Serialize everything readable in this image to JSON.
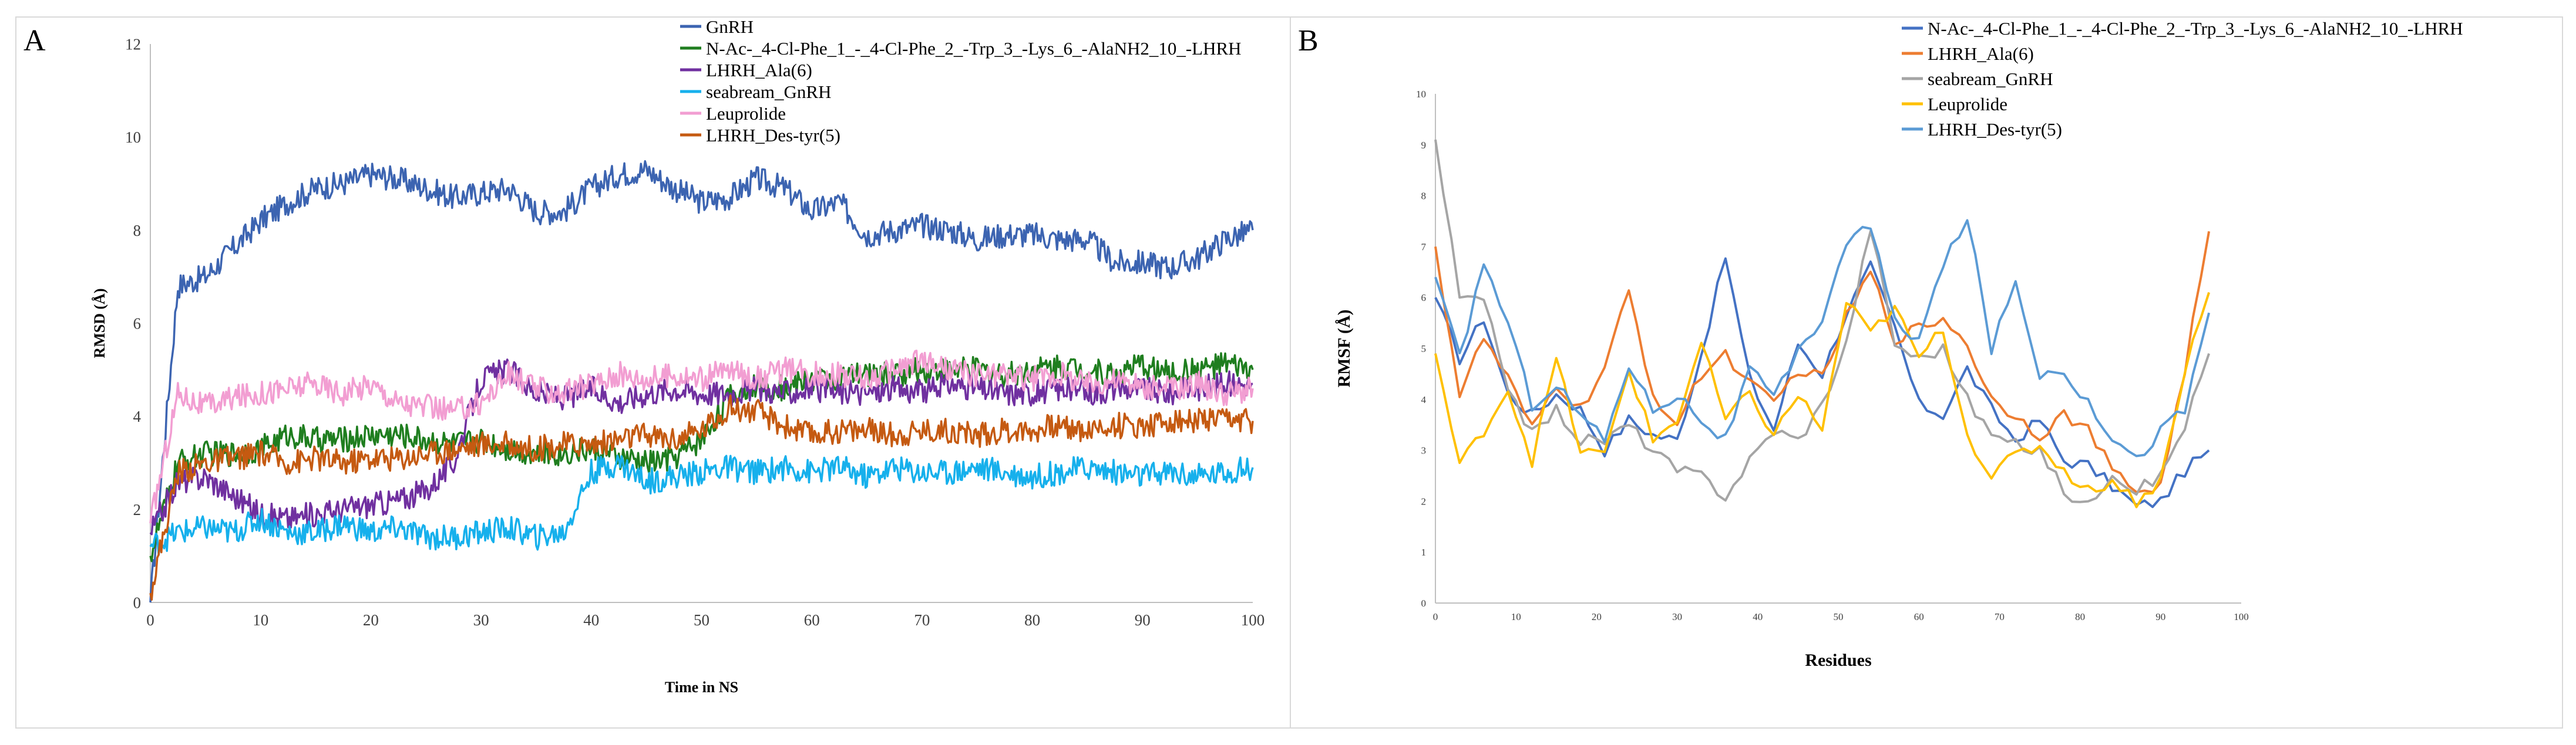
{
  "chart_data": [
    {
      "id": "A",
      "panel_label": "A",
      "type": "line",
      "title": "",
      "xlabel": "Time in NS",
      "ylabel": "RMSD (Å)",
      "xlim": [
        0,
        100
      ],
      "ylim": [
        0,
        12
      ],
      "xticks": [
        0,
        10,
        20,
        30,
        40,
        50,
        60,
        70,
        80,
        90,
        100
      ],
      "yticks": [
        0,
        2,
        4,
        6,
        8,
        10,
        12
      ],
      "grid": false,
      "legend_position": "top-right",
      "x": [
        0,
        2.5,
        5,
        7.5,
        10,
        12.5,
        15,
        17.5,
        20,
        22.5,
        25,
        27.5,
        30,
        32.5,
        35,
        37.5,
        40,
        42.5,
        45,
        47.5,
        50,
        52.5,
        55,
        57.5,
        60,
        62.5,
        65,
        67.5,
        70,
        72.5,
        75,
        77.5,
        80,
        82.5,
        85,
        87.5,
        90,
        92.5,
        95,
        97.5,
        100
      ],
      "series": [
        {
          "name": "GnRH",
          "color": "#3c64b1",
          "values": [
            0,
            6.8,
            7.0,
            7.6,
            8.2,
            8.6,
            8.9,
            9.0,
            9.2,
            9.1,
            8.9,
            8.7,
            8.8,
            8.9,
            8.4,
            8.4,
            8.9,
            9.2,
            9.3,
            8.9,
            8.6,
            8.7,
            9.1,
            8.9,
            8.4,
            8.6,
            7.9,
            8.0,
            8.1,
            8.0,
            7.8,
            7.9,
            7.9,
            7.8,
            7.8,
            7.3,
            7.3,
            7.2,
            7.4,
            7.8,
            8.0
          ]
        },
        {
          "name": "N-Ac-_4-Cl-Phe_1_-_4-Cl-Phe_2_-Trp_3_-Lys_6_-AlaNH2_10_-LHRH",
          "color": "#1f7e1f",
          "values": [
            1.0,
            3.0,
            3.2,
            3.2,
            3.3,
            3.6,
            3.5,
            3.5,
            3.6,
            3.6,
            3.5,
            3.4,
            3.5,
            3.3,
            3.2,
            3.2,
            3.3,
            3.1,
            3.0,
            3.1,
            3.5,
            4.4,
            4.7,
            4.6,
            4.8,
            4.8,
            4.9,
            4.9,
            5.0,
            5.0,
            5.0,
            4.9,
            5.0,
            5.1,
            5.0,
            4.9,
            5.1,
            4.9,
            5.0,
            5.1,
            5.0
          ]
        },
        {
          "name": "LHRH_Ala(6)",
          "color": "#7030a0",
          "values": [
            1.5,
            2.6,
            2.7,
            2.3,
            1.9,
            1.8,
            1.9,
            2.0,
            2.1,
            2.2,
            2.4,
            3.0,
            4.8,
            5.0,
            4.5,
            4.4,
            4.6,
            4.3,
            4.5,
            4.6,
            4.5,
            4.5,
            4.6,
            4.5,
            4.6,
            4.5,
            4.5,
            4.6,
            4.5,
            4.7,
            4.6,
            4.5,
            4.5,
            4.6,
            4.5,
            4.6,
            4.6,
            4.5,
            4.6,
            4.7,
            4.7
          ]
        },
        {
          "name": "seabream_GnRH",
          "color": "#16b0ec",
          "values": [
            1.2,
            1.5,
            1.6,
            1.5,
            1.8,
            1.5,
            1.5,
            1.7,
            1.5,
            1.6,
            1.4,
            1.4,
            1.5,
            1.6,
            1.4,
            1.5,
            2.8,
            3.0,
            2.6,
            2.7,
            2.8,
            2.9,
            2.8,
            2.9,
            2.8,
            2.9,
            2.7,
            2.9,
            2.8,
            2.8,
            2.9,
            2.8,
            2.7,
            2.8,
            2.9,
            2.8,
            2.7,
            2.8,
            2.7,
            2.8,
            2.9
          ]
        },
        {
          "name": "Leuprolide",
          "color": "#f29ed2",
          "values": [
            1.7,
            4.5,
            4.2,
            4.4,
            4.5,
            4.6,
            4.7,
            4.5,
            4.7,
            4.3,
            4.2,
            4.1,
            4.3,
            4.9,
            4.6,
            4.5,
            4.7,
            4.9,
            4.8,
            4.9,
            4.8,
            5.0,
            4.8,
            5.0,
            4.9,
            4.9,
            4.8,
            5.0,
            5.2,
            5.0,
            4.9,
            4.9,
            4.8,
            4.9,
            4.7,
            4.8,
            4.6,
            4.6,
            4.7,
            4.5,
            4.6
          ]
        },
        {
          "name": "LHRH_Des-tyr(5)",
          "color": "#c55a11",
          "values": [
            0.2,
            2.8,
            3.0,
            3.1,
            3.2,
            3.0,
            3.1,
            3.0,
            3.1,
            3.1,
            3.2,
            3.3,
            3.4,
            3.4,
            3.3,
            3.4,
            3.4,
            3.5,
            3.6,
            3.5,
            3.7,
            4.2,
            4.1,
            3.8,
            3.6,
            3.7,
            3.7,
            3.6,
            3.7,
            3.7,
            3.6,
            3.7,
            3.7,
            3.8,
            3.7,
            3.8,
            3.8,
            3.9,
            3.9,
            3.9,
            3.9
          ]
        }
      ]
    },
    {
      "id": "B",
      "panel_label": "B",
      "type": "line",
      "title": "",
      "xlabel": "Residues",
      "ylabel": "RMSF (Å)",
      "xlim": [
        0,
        100
      ],
      "ylim": [
        0,
        10
      ],
      "xticks": [
        0,
        10,
        20,
        30,
        40,
        50,
        60,
        70,
        80,
        90,
        100
      ],
      "yticks": [
        0,
        1,
        2,
        3,
        4,
        5,
        6,
        7,
        8,
        9,
        10
      ],
      "grid": false,
      "legend_position": "top-right",
      "x": [
        0,
        3,
        6,
        9,
        12,
        15,
        18,
        21,
        24,
        27,
        30,
        33,
        36,
        39,
        42,
        45,
        48,
        51,
        54,
        57,
        60,
        63,
        66,
        69,
        72,
        75,
        78,
        81,
        84,
        87,
        90,
        93,
        96
      ],
      "series": [
        {
          "name": "N-Ac-_4-Cl-Phe_1_-_4-Cl-Phe_2_-Trp_3_-Lys_6_-AlaNH2_10_-LHRH",
          "color": "#4472c4",
          "values": [
            6.0,
            4.8,
            5.6,
            4.1,
            3.7,
            4.1,
            3.8,
            3.0,
            3.6,
            3.3,
            3.2,
            4.9,
            6.8,
            4.4,
            3.4,
            5.1,
            4.5,
            5.7,
            6.6,
            5.4,
            3.9,
            3.7,
            4.6,
            3.8,
            3.2,
            3.6,
            2.8,
            2.7,
            2.3,
            1.9,
            2.0,
            2.6,
            3.0
          ]
        },
        {
          "name": "LHRH_Ala(6)",
          "color": "#ed7d31",
          "values": [
            7.0,
            4.1,
            5.2,
            4.4,
            3.4,
            4.3,
            3.8,
            4.6,
            6.1,
            4.1,
            3.5,
            4.5,
            4.9,
            4.3,
            3.9,
            4.6,
            4.4,
            5.6,
            6.5,
            5.2,
            5.4,
            5.6,
            5.1,
            4.0,
            3.7,
            3.3,
            3.7,
            3.4,
            2.6,
            2.2,
            2.3,
            4.6,
            7.3
          ]
        },
        {
          "name": "seabream_GnRH",
          "color": "#a5a5a5",
          "values": [
            9.1,
            6.0,
            5.9,
            4.3,
            3.3,
            3.8,
            3.2,
            3.2,
            3.5,
            3.0,
            2.6,
            2.5,
            2.1,
            2.8,
            3.4,
            3.2,
            3.9,
            5.1,
            7.4,
            5.1,
            4.8,
            5.0,
            4.0,
            3.3,
            3.1,
            3.0,
            2.2,
            1.9,
            2.6,
            2.2,
            2.5,
            3.5,
            4.9
          ]
        },
        {
          "name": "Leuprolide",
          "color": "#ffc000",
          "values": [
            4.9,
            2.7,
            3.4,
            4.2,
            2.8,
            4.8,
            3.0,
            2.9,
            4.6,
            3.2,
            3.6,
            5.1,
            3.6,
            4.1,
            3.3,
            4.1,
            3.4,
            5.9,
            5.3,
            5.8,
            4.8,
            5.4,
            3.3,
            2.5,
            2.9,
            3.1,
            2.6,
            2.2,
            2.4,
            2.0,
            2.4,
            4.6,
            6.1
          ]
        },
        {
          "name": "LHRH_Des-tyr(5)",
          "color": "#5b9bd5",
          "values": [
            6.4,
            4.8,
            6.7,
            5.5,
            3.9,
            4.3,
            3.7,
            3.2,
            4.7,
            3.8,
            4.1,
            3.6,
            3.2,
            4.6,
            4.0,
            4.9,
            5.6,
            7.1,
            7.4,
            5.5,
            5.2,
            6.6,
            7.6,
            5.0,
            6.3,
            4.5,
            4.6,
            3.9,
            3.3,
            2.8,
            3.4,
            3.8,
            5.7
          ]
        }
      ]
    }
  ]
}
